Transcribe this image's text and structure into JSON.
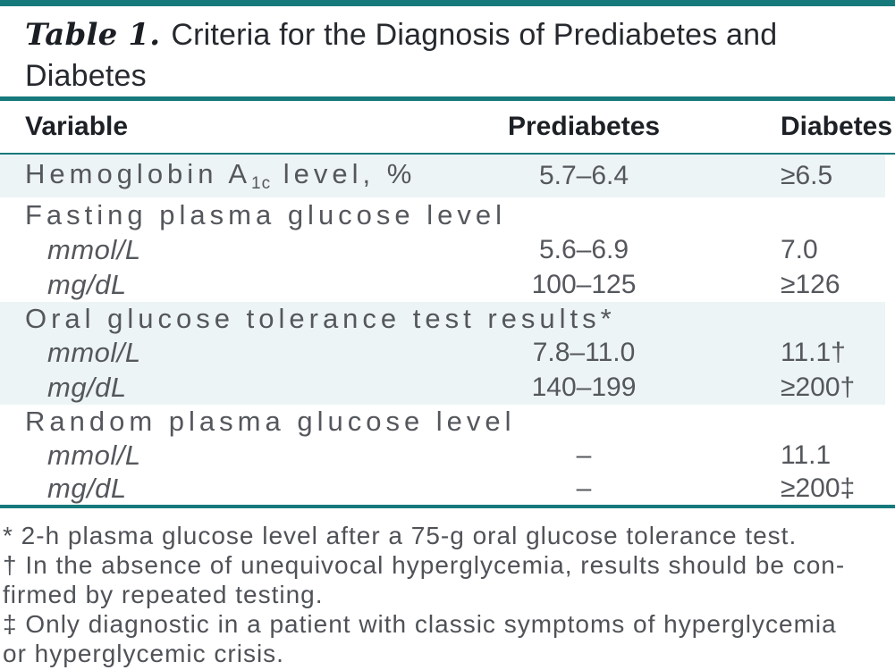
{
  "colors": {
    "accent": "#16797b",
    "row_tint": "#edf4f5"
  },
  "title": {
    "label": "Table 1.",
    "text": "Criteria for the Diagnosis of Prediabetes and Diabetes"
  },
  "table": {
    "columns": [
      "Variable",
      "Prediabetes",
      "Diabetes"
    ],
    "rows": [
      {
        "variable_pre": "Hemoglobin A",
        "variable_sub": "1c",
        "variable_post": " level, %",
        "prediabetes": "5.7–6.4",
        "diabetes": "≥6.5"
      },
      {
        "variable": "Fasting plasma glucose level"
      },
      {
        "variable": "mmol/L",
        "prediabetes": "5.6–6.9",
        "diabetes": "7.0"
      },
      {
        "variable": "mg/dL",
        "prediabetes": "100–125",
        "diabetes": "≥126"
      },
      {
        "variable": "Oral glucose tolerance test results*"
      },
      {
        "variable": "mmol/L",
        "prediabetes": "7.8–11.0",
        "diabetes": "11.1†"
      },
      {
        "variable": "mg/dL",
        "prediabetes": "140–199",
        "diabetes": "≥200†"
      },
      {
        "variable": "Random plasma glucose level"
      },
      {
        "variable": "mmol/L",
        "prediabetes": "–",
        "diabetes": "11.1"
      },
      {
        "variable": "mg/dL",
        "prediabetes": "–",
        "diabetes": "≥200‡"
      }
    ]
  },
  "footnotes": {
    "lines": [
      "* 2-h plasma glucose level after a 75-g oral glucose tolerance test.",
      "† In the absence of unequivocal hyperglycemia, results should be con-",
      "firmed by repeated testing.",
      "‡ Only diagnostic in a patient with classic symptoms of hyperglycemia",
      "or hyperglycemic crisis."
    ]
  }
}
